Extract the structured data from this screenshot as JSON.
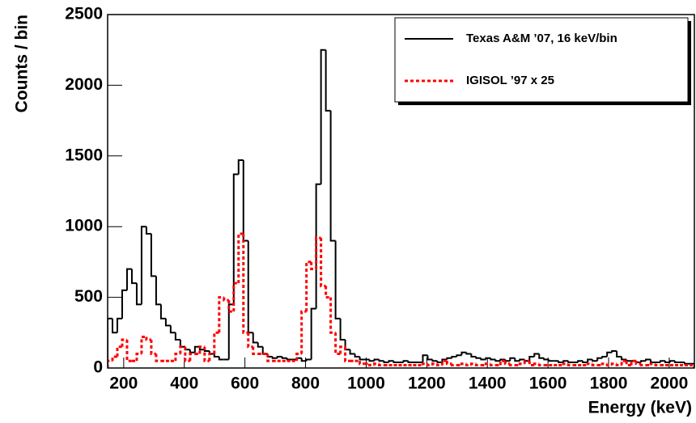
{
  "chart_data": {
    "type": "histogram",
    "xlabel": "Energy (keV)",
    "ylabel": "Counts / bin",
    "bins": [
      147,
      163,
      179,
      195,
      211,
      227,
      243,
      259,
      275,
      291,
      307,
      323,
      339,
      355,
      371,
      387,
      403,
      419,
      435,
      451,
      467,
      483,
      499,
      515,
      531,
      547,
      563,
      579,
      595,
      611,
      627,
      643,
      659,
      675,
      691,
      707,
      723,
      739,
      755,
      771,
      787,
      803,
      819,
      835,
      851,
      867,
      883,
      899,
      915,
      931,
      947,
      963,
      979,
      995,
      1011,
      1027,
      1043,
      1059,
      1075,
      1091,
      1107,
      1123,
      1139,
      1155,
      1171,
      1187,
      1203,
      1219,
      1235,
      1251,
      1267,
      1283,
      1299,
      1315,
      1331,
      1347,
      1363,
      1379,
      1395,
      1411,
      1427,
      1443,
      1459,
      1475,
      1491,
      1507,
      1523,
      1539,
      1555,
      1571,
      1587,
      1603,
      1619,
      1635,
      1651,
      1667,
      1683,
      1699,
      1715,
      1731,
      1747,
      1763,
      1779,
      1795,
      1811,
      1827,
      1843,
      1859,
      1875,
      1891,
      1907,
      1923,
      1939,
      1955,
      1971,
      1987,
      2003,
      2019,
      2035,
      2051,
      2067,
      2083
    ],
    "series": [
      {
        "name": "Texas A&M ’07, 16 keV/bin",
        "color": "#000000",
        "dashed": false,
        "values": [
          350,
          250,
          350,
          550,
          700,
          600,
          450,
          1000,
          950,
          650,
          450,
          350,
          300,
          250,
          200,
          150,
          130,
          110,
          150,
          130,
          120,
          100,
          80,
          60,
          60,
          450,
          1370,
          1470,
          900,
          250,
          180,
          150,
          100,
          80,
          70,
          80,
          70,
          60,
          60,
          70,
          50,
          60,
          420,
          1300,
          2250,
          1820,
          900,
          350,
          200,
          130,
          100,
          80,
          60,
          60,
          50,
          60,
          50,
          40,
          50,
          40,
          40,
          50,
          40,
          40,
          40,
          90,
          60,
          50,
          40,
          60,
          70,
          80,
          90,
          110,
          100,
          80,
          70,
          60,
          70,
          60,
          50,
          60,
          50,
          70,
          50,
          60,
          50,
          80,
          100,
          70,
          60,
          50,
          50,
          40,
          50,
          40,
          40,
          50,
          40,
          60,
          50,
          70,
          80,
          110,
          120,
          80,
          60,
          50,
          50,
          40,
          50,
          60,
          40,
          40,
          50,
          40,
          50,
          40,
          40,
          30,
          30
        ]
      },
      {
        "name": "IGISOL ’97 x 25",
        "color": "#ff0000",
        "dashed": true,
        "values": [
          50,
          80,
          150,
          200,
          50,
          50,
          100,
          220,
          200,
          100,
          50,
          50,
          50,
          50,
          100,
          150,
          50,
          100,
          100,
          150,
          50,
          100,
          250,
          500,
          480,
          400,
          600,
          950,
          250,
          150,
          100,
          100,
          100,
          50,
          50,
          50,
          50,
          50,
          50,
          100,
          400,
          750,
          700,
          920,
          580,
          500,
          250,
          100,
          150,
          50,
          50,
          50,
          30,
          30,
          20,
          30,
          20,
          20,
          20,
          20,
          20,
          20,
          20,
          20,
          20,
          30,
          20,
          30,
          20,
          50,
          30,
          20,
          20,
          30,
          20,
          30,
          20,
          20,
          30,
          20,
          20,
          50,
          30,
          20,
          20,
          30,
          50,
          20,
          30,
          20,
          20,
          20,
          20,
          20,
          30,
          20,
          20,
          20,
          20,
          30,
          20,
          20,
          30,
          20,
          30,
          20,
          50,
          20,
          50,
          30,
          20,
          20,
          30,
          20,
          20,
          20,
          20,
          20,
          20,
          20,
          20
        ]
      }
    ],
    "xlim": [
      147,
      2083
    ],
    "ylim": [
      0,
      2500
    ],
    "xticks": [
      200,
      400,
      600,
      800,
      1000,
      1200,
      1400,
      1600,
      1800,
      2000
    ],
    "yticks": [
      0,
      500,
      1000,
      1500,
      2000,
      2500
    ],
    "grid": false,
    "legend": "top-right"
  }
}
